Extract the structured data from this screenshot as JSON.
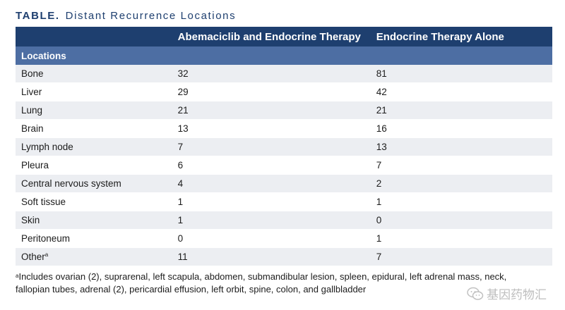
{
  "title": {
    "label": "TABLE.",
    "text": "Distant Recurrence Locations"
  },
  "table": {
    "headers": [
      "",
      "Abemaciclib and Endocrine Therapy",
      "Endocrine Therapy Alone"
    ],
    "section_label": "Locations",
    "rows": [
      {
        "location": "Bone",
        "abemaciclib": "32",
        "endocrine": "81"
      },
      {
        "location": "Liver",
        "abemaciclib": "29",
        "endocrine": "42"
      },
      {
        "location": "Lung",
        "abemaciclib": "21",
        "endocrine": "21"
      },
      {
        "location": "Brain",
        "abemaciclib": "13",
        "endocrine": "16"
      },
      {
        "location": "Lymph node",
        "abemaciclib": "7",
        "endocrine": "13"
      },
      {
        "location": "Pleura",
        "abemaciclib": "6",
        "endocrine": "7"
      },
      {
        "location": "Central nervous system",
        "abemaciclib": "4",
        "endocrine": "2"
      },
      {
        "location": "Soft tissue",
        "abemaciclib": "1",
        "endocrine": "1"
      },
      {
        "location": "Skin",
        "abemaciclib": "1",
        "endocrine": "0"
      },
      {
        "location": "Peritoneum",
        "abemaciclib": "0",
        "endocrine": "1"
      },
      {
        "location": "Other",
        "abemaciclib": "11",
        "endocrine": "7"
      }
    ],
    "other_footnote_marker": "a"
  },
  "footnote": {
    "marker": "a",
    "text": "Includes ovarian (2), suprarenal, left scapula, abdomen, submandibular lesion, spleen, epidural, left adrenal mass, neck, fallopian tubes, adrenal (2), pericardial effusion, left orbit, spine, colon, and gallbladder"
  },
  "watermark": {
    "text": "基因药物汇",
    "icon": "wechat-icon"
  },
  "colors": {
    "header_bg": "#1e3f6f",
    "subheader_bg": "#4d6ea3",
    "stripe_bg": "#eceef2",
    "title_color": "#1e3f6f"
  }
}
